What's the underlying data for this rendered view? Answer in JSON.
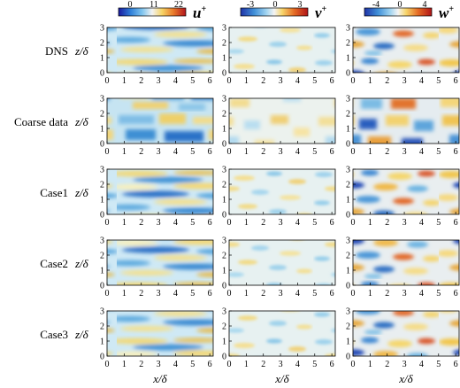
{
  "colorbars": [
    {
      "symbol": "u",
      "sup": "+",
      "ticks": [
        "0",
        "11",
        "22"
      ]
    },
    {
      "symbol": "v",
      "sup": "+",
      "ticks": [
        "-3",
        "0",
        "3"
      ]
    },
    {
      "symbol": "w",
      "sup": "+",
      "ticks": [
        "-4",
        "0",
        "4"
      ]
    }
  ],
  "rows": [
    {
      "label": "DNS"
    },
    {
      "label": "Coarse data"
    },
    {
      "label": "Case1"
    },
    {
      "label": "Case2"
    },
    {
      "label": "Case3"
    }
  ],
  "axes": {
    "xlabel": "x/δ",
    "ylabel": "z/δ",
    "x_ticks": [
      "0",
      "1",
      "2",
      "3",
      "4",
      "5",
      "6"
    ],
    "y_ticks": [
      "0",
      "1",
      "2",
      "3"
    ],
    "x_range": [
      0,
      6.2
    ],
    "y_range": [
      0,
      3
    ]
  },
  "colors": {
    "frame": "#000000",
    "u_scale": [
      "#1a1aa0",
      "#2f7fd8",
      "#7fc4ee",
      "#f2f2f2",
      "#f6d365",
      "#e8782a",
      "#b3141c"
    ],
    "vw_scale": [
      "#1f33a6",
      "#3f8fd8",
      "#9fd3f0",
      "#f4f4f4",
      "#f7d56a",
      "#e46a24",
      "#b01418"
    ]
  }
}
